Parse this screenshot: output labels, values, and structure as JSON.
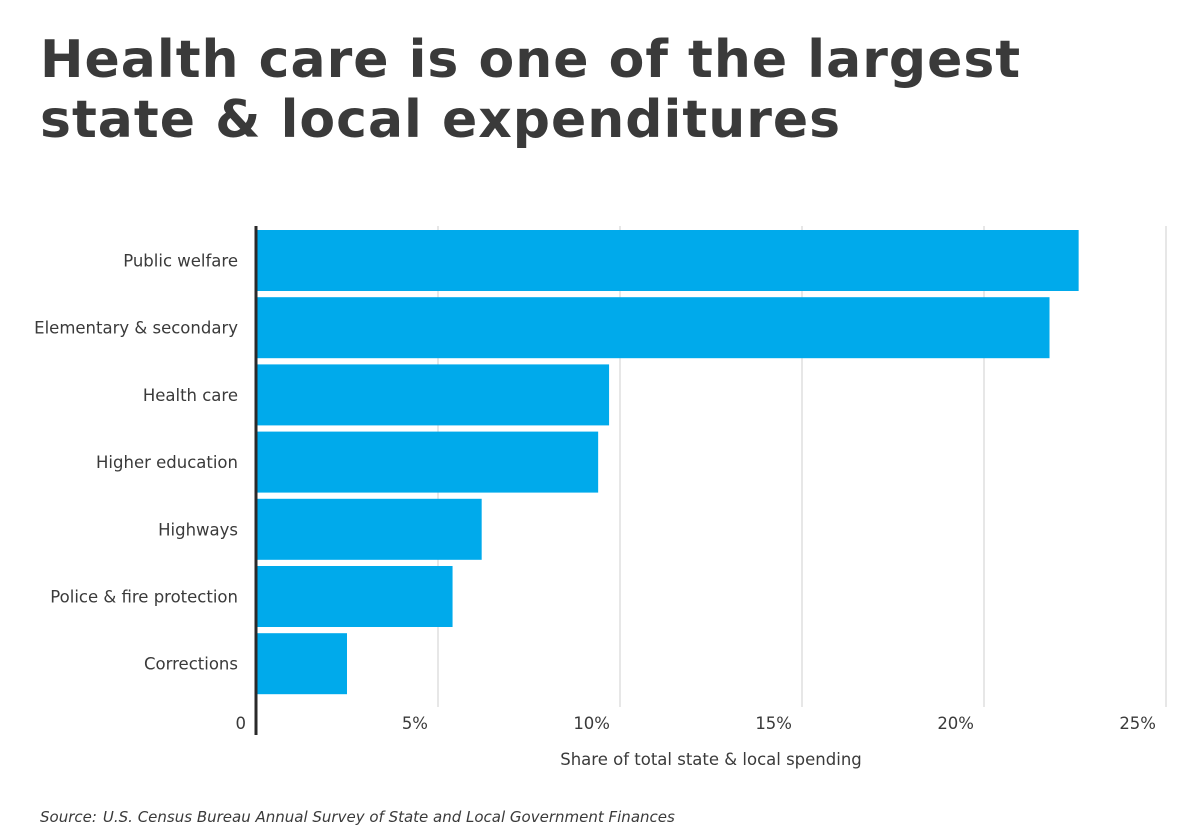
{
  "colors": {
    "bar": "#00AAEB",
    "grid": "#cfcfcf",
    "axis": "#2a2a2a",
    "text": "#3a3a3a"
  },
  "chart_data": {
    "type": "bar",
    "orientation": "horizontal",
    "title": "Health care is one of the largest state & local expenditures",
    "xlabel": "Share of total state & local spending",
    "categories": [
      "Public welfare",
      "Elementary & secondary",
      "Health care",
      "Higher education",
      "Highways",
      "Police & fire protection",
      "Corrections"
    ],
    "values": [
      22.6,
      21.8,
      9.7,
      9.4,
      6.2,
      5.4,
      2.5
    ],
    "xlim": [
      0,
      25
    ],
    "xticks": [
      "0",
      "5%",
      "10%",
      "15%",
      "20%",
      "25%"
    ],
    "grid": true
  },
  "source": {
    "prefix": "Source:",
    "text": "U.S. Census Bureau Annual Survey of State and Local Government Finances"
  }
}
